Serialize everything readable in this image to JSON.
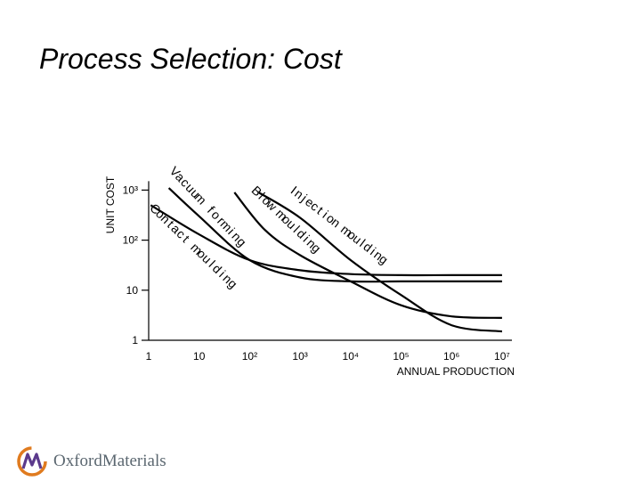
{
  "title": "Process Selection: Cost",
  "logo_text": "OxfordMaterials",
  "colors": {
    "line": "#000000",
    "logo_orange": "#e07b1f",
    "logo_purple": "#5b3a8c",
    "logo_text": "#5b6770"
  },
  "chart_data": {
    "type": "line",
    "xscale": "log",
    "yscale": "log",
    "xlabel": "ANNUAL PRODUCTION",
    "ylabel": "UNIT COST",
    "xlim": [
      1,
      10000000
    ],
    "ylim": [
      1,
      1000
    ],
    "x_ticks": [
      {
        "value": 1,
        "label": "1"
      },
      {
        "value": 10,
        "label": "10"
      },
      {
        "value": 100,
        "label": "10²"
      },
      {
        "value": 1000,
        "label": "10³"
      },
      {
        "value": 10000,
        "label": "10⁴"
      },
      {
        "value": 100000,
        "label": "10⁵"
      },
      {
        "value": 1000000,
        "label": "10⁶"
      },
      {
        "value": 10000000,
        "label": "10⁷"
      }
    ],
    "y_ticks": [
      {
        "value": 1,
        "label": "1"
      },
      {
        "value": 10,
        "label": "10"
      },
      {
        "value": 100,
        "label": "10²"
      },
      {
        "value": 1000,
        "label": "10³"
      }
    ],
    "series": [
      {
        "name": "Contact moulding",
        "label_chars": [
          "C",
          "o",
          "n",
          "t",
          "a",
          "c",
          "t",
          " ",
          "m",
          "o",
          "u",
          "l",
          "d",
          "i",
          "n",
          "g"
        ],
        "points": [
          [
            1.1,
            500
          ],
          [
            10,
            130
          ],
          [
            100,
            40
          ],
          [
            1000,
            25
          ],
          [
            10000,
            21
          ],
          [
            100000,
            20
          ],
          [
            1000000,
            20
          ],
          [
            10000000,
            20
          ]
        ]
      },
      {
        "name": "Vacuum forming",
        "label_chars": [
          "V",
          "a",
          "c",
          "u",
          "u",
          "m",
          " ",
          "f",
          "o",
          "r",
          "m",
          "i",
          "n",
          "g"
        ],
        "points": [
          [
            2.5,
            1100
          ],
          [
            10,
            300
          ],
          [
            100,
            40
          ],
          [
            1000,
            18
          ],
          [
            10000,
            15
          ],
          [
            100000,
            15
          ],
          [
            1000000,
            15
          ],
          [
            10000000,
            15
          ]
        ]
      },
      {
        "name": "Blow moulding",
        "label_chars": [
          "B",
          "l",
          "o",
          "w",
          " ",
          "m",
          "o",
          "u",
          "l",
          "d",
          "i",
          "n",
          "g"
        ],
        "points": [
          [
            50,
            900
          ],
          [
            200,
            160
          ],
          [
            1000,
            50
          ],
          [
            10000,
            15
          ],
          [
            100000,
            5
          ],
          [
            1000000,
            3
          ],
          [
            10000000,
            2.8
          ]
        ]
      },
      {
        "name": "Injection moulding",
        "label_chars": [
          "I",
          "n",
          "j",
          "e",
          "c",
          "t",
          "i",
          "o",
          "n",
          " ",
          "m",
          "o",
          "u",
          "l",
          "d",
          "i",
          "n",
          "g"
        ],
        "points": [
          [
            150,
            900
          ],
          [
            1000,
            280
          ],
          [
            10000,
            40
          ],
          [
            100000,
            8
          ],
          [
            1000000,
            2
          ],
          [
            10000000,
            1.5
          ]
        ]
      }
    ]
  }
}
